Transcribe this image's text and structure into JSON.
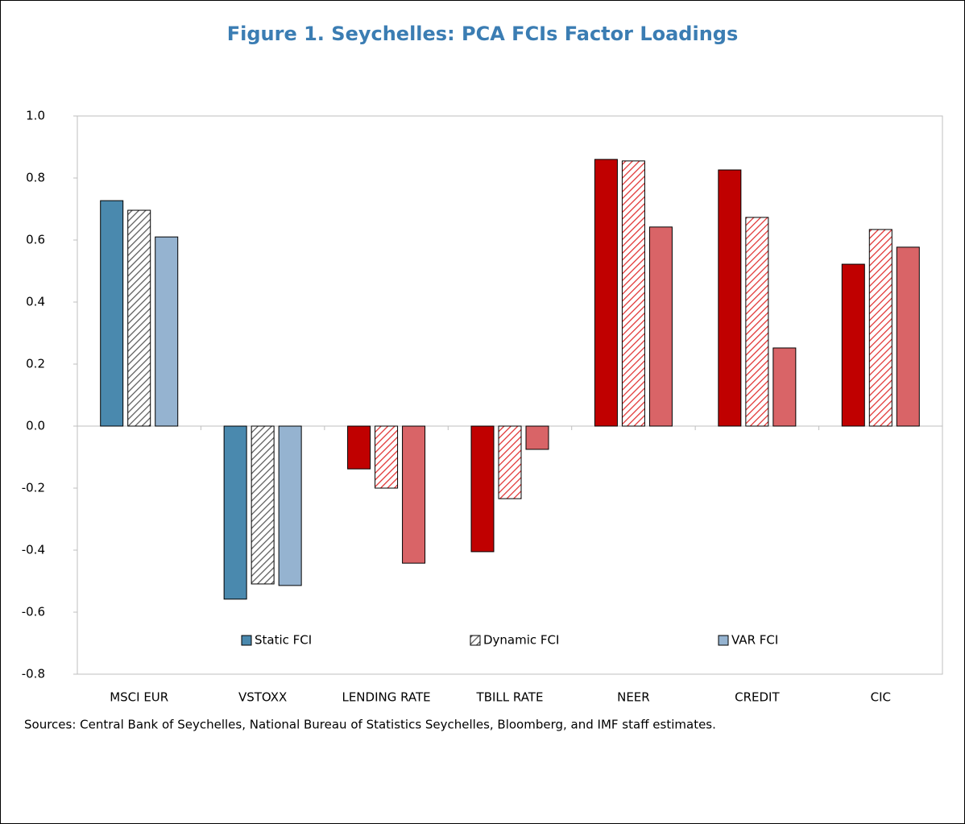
{
  "chart_data": {
    "type": "bar",
    "title": "Figure 1. Seychelles: PCA FCIs Factor Loadings",
    "note": "Sources: Central Bank of Seychelles, National Bureau of Statistics Seychelles, Bloomberg, and IMF staff estimates.",
    "categories": [
      "MSCI EUR",
      "VSTOXX",
      "LENDING RATE",
      "TBILL RATE",
      "NEER",
      "CREDIT",
      "CIC"
    ],
    "series": [
      {
        "name": "Static FCI",
        "color": "#4a89ae",
        "pattern": "solid",
        "colors": [
          "#4a89ae",
          "#4a89ae",
          "#c00000",
          "#c00000",
          "#c00000",
          "#c00000",
          "#c00000"
        ],
        "values": [
          0.727,
          -0.558,
          -0.138,
          -0.405,
          0.86,
          0.826,
          0.522
        ]
      },
      {
        "name": "Dynamic FCI",
        "color": "#595959",
        "pattern": "hatch",
        "colors": [
          "#595959",
          "#595959",
          "#e03030",
          "#e03030",
          "#e03030",
          "#e03030",
          "#e03030"
        ],
        "values": [
          0.696,
          -0.509,
          -0.2,
          -0.234,
          0.855,
          0.673,
          0.634
        ]
      },
      {
        "name": "VAR FCI",
        "color": "#95b3d0",
        "pattern": "solid",
        "colors": [
          "#95b3d0",
          "#95b3d0",
          "#d96467",
          "#d96467",
          "#d96467",
          "#d96467",
          "#d96467"
        ],
        "values": [
          0.61,
          -0.514,
          -0.442,
          -0.075,
          0.642,
          0.252,
          0.577
        ]
      }
    ],
    "ylim": [
      -0.8,
      1.0
    ],
    "yticks": [
      {
        "value": -0.8,
        "label": "-0.8"
      },
      {
        "value": -0.6,
        "label": "-0.6"
      },
      {
        "value": -0.4,
        "label": "-0.4"
      },
      {
        "value": -0.2,
        "label": "-0.2"
      },
      {
        "value": 0,
        "label": "0.0"
      },
      {
        "value": 0.2,
        "label": "0.2"
      },
      {
        "value": 0.4,
        "label": "0.4"
      },
      {
        "value": 0.6,
        "label": "0.6"
      },
      {
        "value": 0.8,
        "label": "0.8"
      },
      {
        "value": 1.0,
        "label": "1.0"
      }
    ],
    "grid": false
  }
}
